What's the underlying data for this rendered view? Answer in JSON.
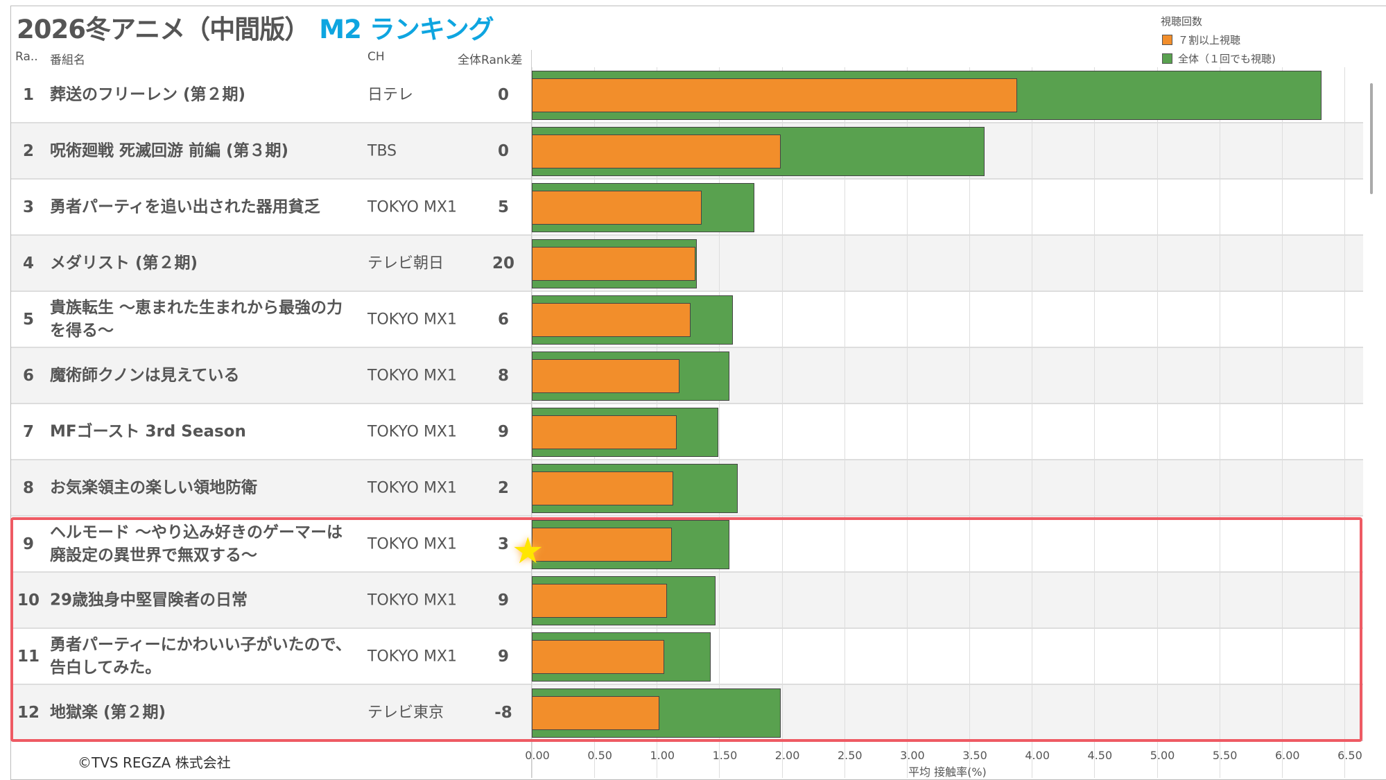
{
  "title": {
    "main": "2026冬アニメ（中間版）",
    "accent": "M2 ランキング"
  },
  "headers": {
    "rank": "Ra..",
    "name": "番組名",
    "ch": "CH",
    "diff": "全体Rank差"
  },
  "legend": {
    "title": "視聴回数",
    "items": [
      {
        "label": "７割以上視聴",
        "color": "#f28e2b"
      },
      {
        "label": "全体（１回でも視聴)",
        "color": "#59a14f"
      }
    ]
  },
  "copyright": "©TVS REGZA 株式会社",
  "chart_data": {
    "type": "bar",
    "orientation": "horizontal",
    "xlabel": "平均 接触率(%)",
    "xlim": [
      0,
      6.6
    ],
    "xticks": [
      "0.00",
      "0.50",
      "1.00",
      "1.50",
      "2.00",
      "2.50",
      "3.00",
      "3.50",
      "4.00",
      "4.50",
      "5.00",
      "5.50",
      "6.00",
      "6.50"
    ],
    "rows": [
      {
        "rank": "1",
        "name": "葬送のフリーレン (第２期)",
        "ch": "日テレ",
        "diff": "0",
        "all": 6.32,
        "seventy": 3.88
      },
      {
        "rank": "2",
        "name": "呪術廻戦 死滅回游 前編 (第３期)",
        "ch": "TBS",
        "diff": "0",
        "all": 3.62,
        "seventy": 1.99
      },
      {
        "rank": "3",
        "name": "勇者パーティを追い出された器用貧乏",
        "ch": "TOKYO MX1",
        "diff": "5",
        "all": 1.78,
        "seventy": 1.36
      },
      {
        "rank": "4",
        "name": "メダリスト (第２期)",
        "ch": "テレビ朝日",
        "diff": "20",
        "all": 1.32,
        "seventy": 1.31
      },
      {
        "rank": "5",
        "name": "貴族転生 ～恵まれた生まれから最強の力を得る～",
        "ch": "TOKYO MX1",
        "diff": "6",
        "all": 1.61,
        "seventy": 1.27
      },
      {
        "rank": "6",
        "name": "魔術師クノンは見えている",
        "ch": "TOKYO MX1",
        "diff": "8",
        "all": 1.58,
        "seventy": 1.18
      },
      {
        "rank": "7",
        "name": "MFゴースト 3rd Season",
        "ch": "TOKYO MX1",
        "diff": "9",
        "all": 1.49,
        "seventy": 1.16
      },
      {
        "rank": "8",
        "name": "お気楽領主の楽しい領地防衛",
        "ch": "TOKYO MX1",
        "diff": "2",
        "all": 1.65,
        "seventy": 1.13
      },
      {
        "rank": "9",
        "name": "ヘルモード ～やり込み好きのゲーマーは廃設定の異世界で無双する～",
        "ch": "TOKYO MX1",
        "diff": "3",
        "all": 1.58,
        "seventy": 1.12
      },
      {
        "rank": "10",
        "name": "29歳独身中堅冒険者の日常",
        "ch": "TOKYO MX1",
        "diff": "9",
        "all": 1.47,
        "seventy": 1.08
      },
      {
        "rank": "11",
        "name": "勇者パーティーにかわいい子がいたので、告白してみた。",
        "ch": "TOKYO MX1",
        "diff": "9",
        "all": 1.43,
        "seventy": 1.06
      },
      {
        "rank": "12",
        "name": "地獄楽 (第２期)",
        "ch": "テレビ東京",
        "diff": "-8",
        "all": 1.99,
        "seventy": 1.02
      }
    ]
  }
}
